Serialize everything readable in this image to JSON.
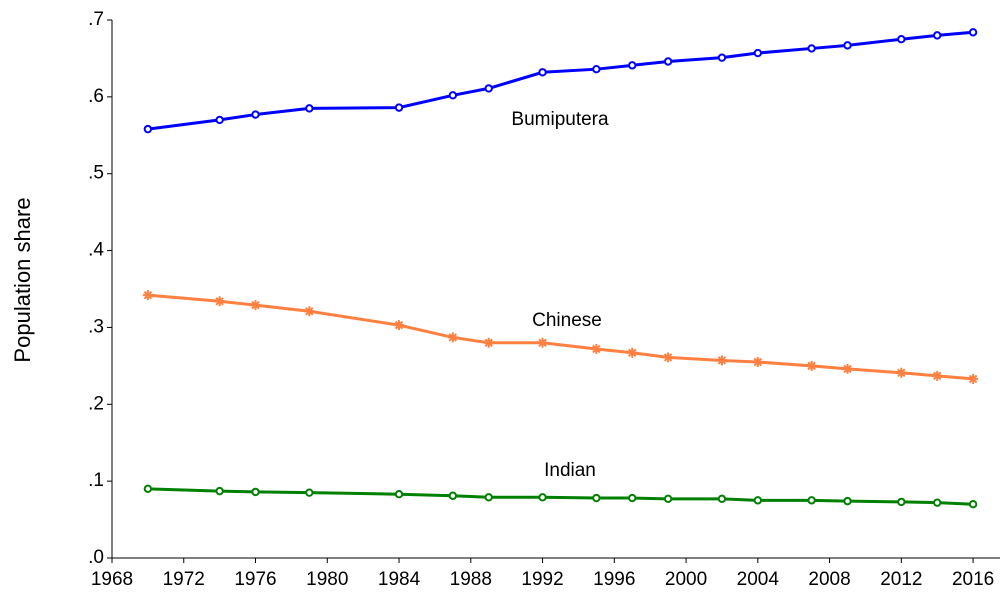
{
  "chart_data": {
    "type": "line",
    "y_label": "Population share",
    "x": [
      1970,
      1974,
      1976,
      1979,
      1984,
      1987,
      1989,
      1992,
      1995,
      1997,
      1999,
      2002,
      2004,
      2007,
      2009,
      2012,
      2014,
      2016
    ],
    "series": [
      {
        "name": "Bumiputera",
        "color": "#0000ff",
        "marker": "circle",
        "values": [
          0.558,
          0.57,
          0.577,
          0.585,
          0.586,
          0.602,
          0.611,
          0.632,
          0.636,
          0.641,
          0.646,
          0.651,
          0.657,
          0.663,
          0.667,
          0.675,
          0.68,
          0.684
        ]
      },
      {
        "name": "Chinese",
        "color": "#ff8040",
        "marker": "asterisk",
        "values": [
          0.342,
          0.334,
          0.329,
          0.321,
          0.303,
          0.287,
          0.28,
          0.28,
          0.272,
          0.267,
          0.261,
          0.257,
          0.255,
          0.25,
          0.246,
          0.241,
          0.237,
          0.233
        ]
      },
      {
        "name": "Indian",
        "color": "#008000",
        "marker": "circle",
        "values": [
          0.09,
          0.087,
          0.086,
          0.085,
          0.083,
          0.081,
          0.079,
          0.079,
          0.078,
          0.078,
          0.077,
          0.077,
          0.075,
          0.075,
          0.074,
          0.073,
          0.072,
          0.07
        ]
      }
    ],
    "xlim": [
      1968,
      2017.5
    ],
    "xticks": [
      1968,
      1972,
      1976,
      1980,
      1984,
      1988,
      1992,
      1996,
      2000,
      2004,
      2008,
      2012,
      2016
    ],
    "ylim": [
      0,
      0.7
    ],
    "yticks": [
      {
        "value": 0,
        "label": ".0"
      },
      {
        "value": 0.1,
        "label": ".1"
      },
      {
        "value": 0.2,
        "label": ".2"
      },
      {
        "value": 0.3,
        "label": ".3"
      },
      {
        "value": 0.4,
        "label": ".4"
      },
      {
        "value": 0.5,
        "label": ".5"
      },
      {
        "value": 0.6,
        "label": ".6"
      },
      {
        "value": 0.7,
        "label": ".7"
      }
    ],
    "grid": false
  }
}
